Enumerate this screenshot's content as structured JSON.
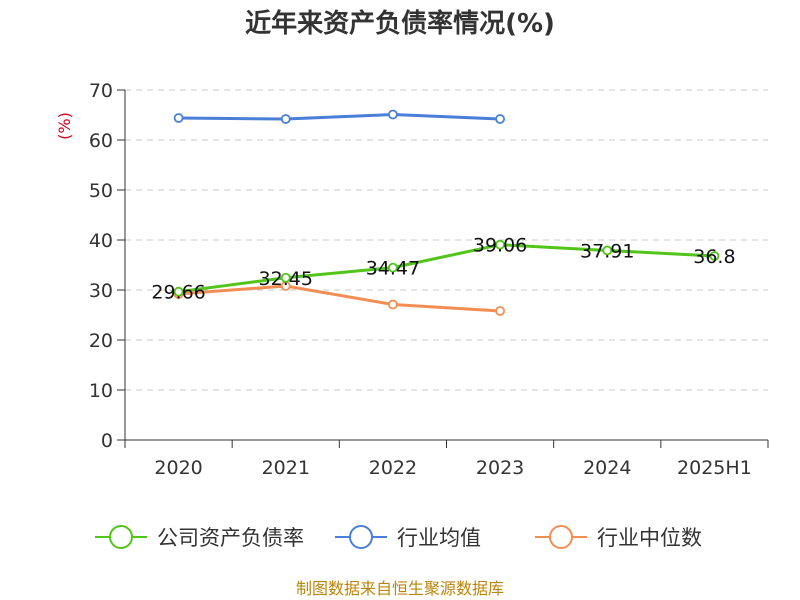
{
  "chart_data": {
    "type": "line",
    "title": "近年来资产负债率情况(%)",
    "ylabel": "(%)",
    "xlabel": "",
    "categories": [
      "2020",
      "2021",
      "2022",
      "2023",
      "2024",
      "2025H1"
    ],
    "ylim": [
      0,
      70
    ],
    "yticks": [
      0,
      10,
      20,
      30,
      40,
      50,
      60,
      70
    ],
    "grid": true,
    "legend_position": "bottom",
    "series": [
      {
        "name": "公司资产负债率",
        "color": "#52c41a",
        "show_labels": true,
        "values": [
          29.66,
          32.45,
          34.47,
          39.06,
          37.91,
          36.8
        ]
      },
      {
        "name": "行业均值",
        "color": "#4a7fd8",
        "show_labels": false,
        "values": [
          64.4,
          64.2,
          65.1,
          64.2,
          null,
          null
        ]
      },
      {
        "name": "行业中位数",
        "color": "#f28e54",
        "show_labels": false,
        "values": [
          29.2,
          30.8,
          27.1,
          25.8,
          null,
          null
        ]
      }
    ],
    "source": "制图数据来自恒生聚源数据库"
  }
}
